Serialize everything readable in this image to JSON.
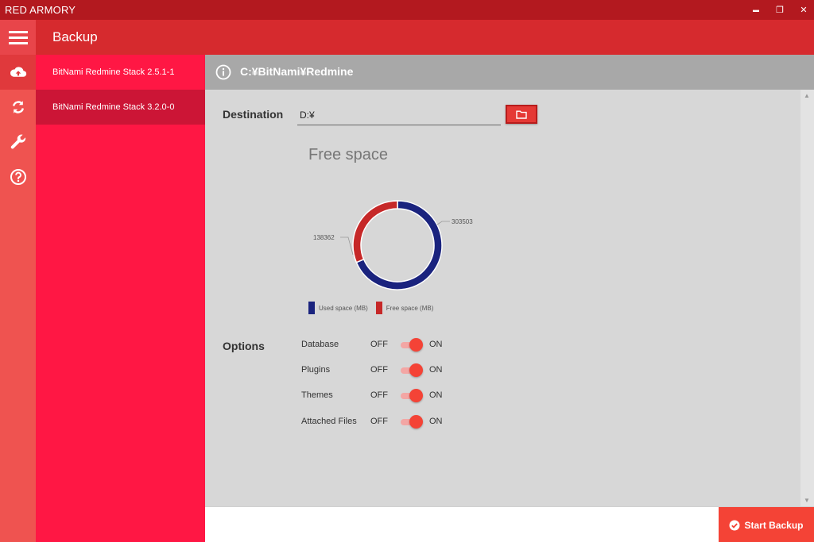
{
  "window": {
    "title": "RED ARMORY",
    "controls": {
      "minimize": "▬",
      "maximize": "❐",
      "close": "✕"
    }
  },
  "header": {
    "title": "Backup",
    "menu_icon": "hamburger-icon"
  },
  "nav": [
    {
      "icon": "cloud-upload-icon",
      "active": true
    },
    {
      "icon": "sync-icon",
      "active": false
    },
    {
      "icon": "wrench-icon",
      "active": false
    },
    {
      "icon": "help-circle-icon",
      "active": false
    }
  ],
  "stacks": [
    {
      "label": "BitNami Redmine Stack 2.5.1-1",
      "selected": false
    },
    {
      "label": "BitNami Redmine Stack 3.2.0-0",
      "selected": true
    }
  ],
  "path_bar": {
    "path": "C:¥BitNami¥Redmine",
    "icon": "info-icon"
  },
  "destination": {
    "label": "Destination",
    "value": "D:¥",
    "browse_icon": "folder-icon"
  },
  "chart": {
    "title": "Free space"
  },
  "chart_data": {
    "type": "pie",
    "title": "Free space",
    "style": "donut",
    "slices": [
      {
        "name": "Used space (MB)",
        "value": 303503,
        "color": "#1a237e"
      },
      {
        "name": "Free space (MB)",
        "value": 138362,
        "color": "#c62828"
      }
    ],
    "legend_position": "bottom-left"
  },
  "options": {
    "label": "Options",
    "off_label": "OFF",
    "on_label": "ON",
    "items": [
      {
        "name": "Database",
        "on": true
      },
      {
        "name": "Plugins",
        "on": true
      },
      {
        "name": "Themes",
        "on": true
      },
      {
        "name": "Attached Files",
        "on": true
      }
    ]
  },
  "footer": {
    "start_label": "Start Backup",
    "start_icon": "check-circle-icon"
  },
  "colors": {
    "titlebar": "#b3191f",
    "header": "#d62a2e",
    "accent": "#f44336",
    "stack_list": "#ff1744"
  }
}
